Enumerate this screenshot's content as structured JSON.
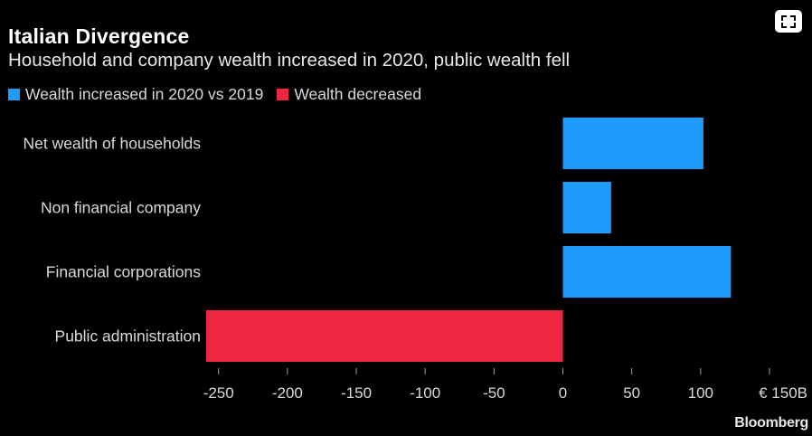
{
  "header": {
    "title": "Italian Divergence",
    "subtitle": "Household and company wealth increased in 2020, public wealth fell"
  },
  "expand_control": {
    "icon": "expand-icon"
  },
  "legend": [
    {
      "label": "Wealth increased in 2020 vs 2019",
      "color": "#1e9bff"
    },
    {
      "label": "Wealth decreased",
      "color": "#ee2640"
    }
  ],
  "chart_data": {
    "type": "bar",
    "orientation": "horizontal",
    "title": "Italian Divergence",
    "subtitle": "Household and company wealth increased in 2020, public wealth fell",
    "categories": [
      "Net wealth of households",
      "Non financial company",
      "Financial corporations",
      "Public administration"
    ],
    "values": [
      102,
      35,
      122,
      -259
    ],
    "colors": [
      "#1e9bff",
      "#1e9bff",
      "#1e9bff",
      "#ee2640"
    ],
    "xlim": [
      -259,
      150
    ],
    "xticks": [
      -250,
      -200,
      -150,
      -100,
      -50,
      0,
      50,
      100,
      150
    ],
    "xtick_labels": [
      "-250",
      "-200",
      "-150",
      "-100",
      "-50",
      "0",
      "50",
      "100",
      "€ 150B"
    ],
    "xlabel": "",
    "ylabel": "",
    "unit": "€ billion",
    "grid": false,
    "legend_position": "top-left"
  },
  "footer": {
    "brand": "Bloomberg"
  }
}
